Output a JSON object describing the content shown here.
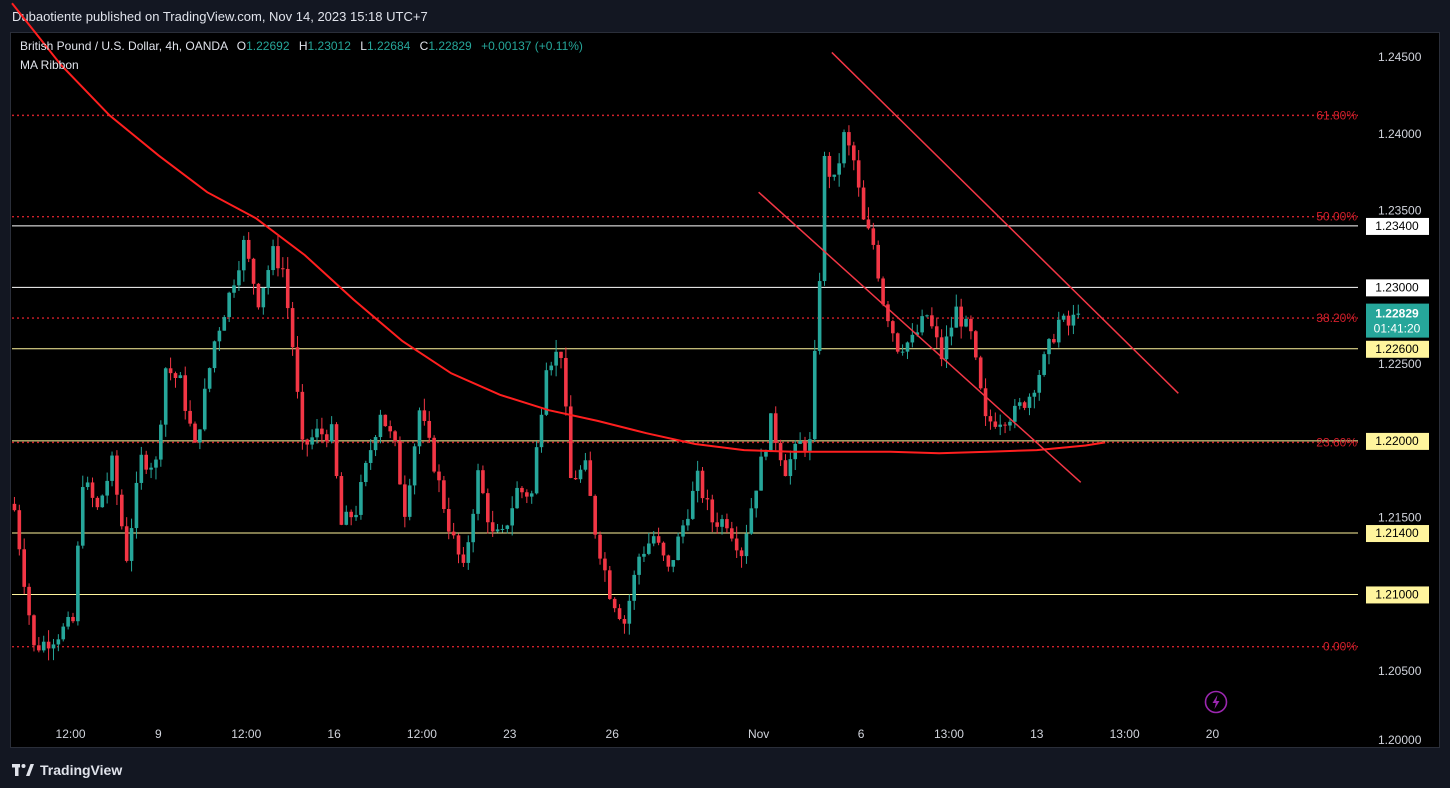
{
  "header": {
    "published_by": "Dubaotiente published on TradingView.com, Nov 14, 2023 15:18 UTC+7"
  },
  "legend": {
    "symbol": "British Pound / U.S. Dollar, 4h, OANDA",
    "open_label": "O",
    "open": "1.22692",
    "high_label": "H",
    "high": "1.23012",
    "low_label": "L",
    "low": "1.22684",
    "close_label": "C",
    "close": "1.22829",
    "change": "+0.00137 (+0.11%)",
    "indicator": "MA Ribbon"
  },
  "footer": {
    "brand": "TradingView"
  },
  "colors": {
    "up": "#26a69a",
    "down": "#f23645",
    "ma": "#ff1f1f",
    "fib": "#d21f2b",
    "channel": "#f23645",
    "hline": "#ffffff",
    "hline_yellow": "#fff59d"
  },
  "chart_data": {
    "type": "candlestick",
    "symbol": "GBPUSD",
    "timeframe": "4h",
    "ylim": [
      1.2,
      1.2465
    ],
    "y_ticks": [
      "1.24500",
      "1.24000",
      "1.23500",
      "1.22500",
      "1.21500",
      "1.20500",
      "1.20000"
    ],
    "x_ticks": [
      {
        "label": "12:00",
        "bar": 12
      },
      {
        "label": "9",
        "bar": 30
      },
      {
        "label": "12:00",
        "bar": 48
      },
      {
        "label": "16",
        "bar": 66
      },
      {
        "label": "12:00",
        "bar": 84
      },
      {
        "label": "23",
        "bar": 102
      },
      {
        "label": "26",
        "bar": 123
      },
      {
        "label": "Nov",
        "bar": 153
      },
      {
        "label": "6",
        "bar": 174
      },
      {
        "label": "13:00",
        "bar": 192
      },
      {
        "label": "13",
        "bar": 210
      },
      {
        "label": "13:00",
        "bar": 228
      },
      {
        "label": "20",
        "bar": 246
      }
    ],
    "last_price": "1.22829",
    "countdown": "01:41:20",
    "horizontal_levels": [
      {
        "value": 1.234,
        "label": "1.23400",
        "style": "white"
      },
      {
        "value": 1.23,
        "label": "1.23000",
        "style": "white"
      },
      {
        "value": 1.226,
        "label": "1.22600",
        "style": "yellow"
      },
      {
        "value": 1.22,
        "label": "1.22000",
        "style": "yellow"
      },
      {
        "value": 1.214,
        "label": "1.21400",
        "style": "yellow"
      },
      {
        "value": 1.21,
        "label": "1.21000",
        "style": "yellow"
      }
    ],
    "fib_levels": [
      {
        "label": "61.80%",
        "value": 1.2412
      },
      {
        "label": "50.00%",
        "value": 1.2346
      },
      {
        "label": "38.20%",
        "value": 1.228
      },
      {
        "label": "23.60%",
        "value": 1.2199
      },
      {
        "label": "0.00%",
        "value": 1.2066
      }
    ],
    "channel_lines": [
      {
        "from": [
          168,
          1.2453
        ],
        "to": [
          239,
          1.2231
        ]
      },
      {
        "from": [
          153,
          1.2362
        ],
        "to": [
          219,
          1.2173
        ]
      }
    ],
    "moving_average": [
      [
        0,
        1.2485
      ],
      [
        10,
        1.2445
      ],
      [
        20,
        1.2412
      ],
      [
        30,
        1.2386
      ],
      [
        40,
        1.2362
      ],
      [
        50,
        1.2345
      ],
      [
        60,
        1.2321
      ],
      [
        70,
        1.2292
      ],
      [
        80,
        1.2265
      ],
      [
        90,
        1.2244
      ],
      [
        100,
        1.223
      ],
      [
        110,
        1.222
      ],
      [
        120,
        1.2213
      ],
      [
        130,
        1.2205
      ],
      [
        140,
        1.2198
      ],
      [
        150,
        1.2194
      ],
      [
        160,
        1.2193
      ],
      [
        170,
        1.2193
      ],
      [
        180,
        1.2193
      ],
      [
        190,
        1.2192
      ],
      [
        200,
        1.2193
      ],
      [
        210,
        1.2194
      ],
      [
        220,
        1.2197
      ],
      [
        224,
        1.2199
      ]
    ],
    "ohlc_anchors": [
      [
        0,
        1.2155
      ],
      [
        4,
        1.2065
      ],
      [
        8,
        1.2072
      ],
      [
        12,
        1.2082
      ],
      [
        14,
        1.2175
      ],
      [
        17,
        1.2155
      ],
      [
        20,
        1.2185
      ],
      [
        23,
        1.2125
      ],
      [
        26,
        1.2188
      ],
      [
        29,
        1.2185
      ],
      [
        31,
        1.2248
      ],
      [
        34,
        1.2238
      ],
      [
        37,
        1.2195
      ],
      [
        41,
        1.2265
      ],
      [
        44,
        1.2295
      ],
      [
        47,
        1.2328
      ],
      [
        50,
        1.2292
      ],
      [
        53,
        1.2322
      ],
      [
        55,
        1.2312
      ],
      [
        57,
        1.2262
      ],
      [
        59,
        1.2195
      ],
      [
        62,
        1.2205
      ],
      [
        65,
        1.2205
      ],
      [
        67,
        1.2145
      ],
      [
        70,
        1.2155
      ],
      [
        73,
        1.2195
      ],
      [
        75,
        1.222
      ],
      [
        78,
        1.2195
      ],
      [
        80,
        1.2155
      ],
      [
        83,
        1.222
      ],
      [
        86,
        1.2185
      ],
      [
        89,
        1.2145
      ],
      [
        92,
        1.2115
      ],
      [
        95,
        1.2178
      ],
      [
        98,
        1.2138
      ],
      [
        100,
        1.2138
      ],
      [
        103,
        1.2168
      ],
      [
        106,
        1.2165
      ],
      [
        109,
        1.2252
      ],
      [
        112,
        1.2258
      ],
      [
        114,
        1.2175
      ],
      [
        117,
        1.2182
      ],
      [
        119,
        1.2142
      ],
      [
        122,
        1.2102
      ],
      [
        125,
        1.2082
      ],
      [
        128,
        1.2125
      ],
      [
        131,
        1.2138
      ],
      [
        134,
        1.2115
      ],
      [
        137,
        1.2145
      ],
      [
        140,
        1.2175
      ],
      [
        143,
        1.2148
      ],
      [
        146,
        1.2148
      ],
      [
        149,
        1.2128
      ],
      [
        152,
        1.2172
      ],
      [
        155,
        1.2212
      ],
      [
        158,
        1.2182
      ],
      [
        161,
        1.2198
      ],
      [
        163,
        1.2198
      ],
      [
        165,
        1.2308
      ],
      [
        166,
        1.2382
      ],
      [
        168,
        1.2368
      ],
      [
        170,
        1.2398
      ],
      [
        172,
        1.2382
      ],
      [
        174,
        1.2342
      ],
      [
        176,
        1.2328
      ],
      [
        178,
        1.2292
      ],
      [
        181,
        1.2262
      ],
      [
        184,
        1.2265
      ],
      [
        187,
        1.2282
      ],
      [
        190,
        1.2255
      ],
      [
        193,
        1.2285
      ],
      [
        196,
        1.2268
      ],
      [
        199,
        1.2212
      ],
      [
        202,
        1.2215
      ],
      [
        205,
        1.2218
      ],
      [
        208,
        1.223
      ],
      [
        211,
        1.2252
      ],
      [
        214,
        1.2278
      ],
      [
        216,
        1.2275
      ],
      [
        218,
        1.2283
      ]
    ]
  }
}
